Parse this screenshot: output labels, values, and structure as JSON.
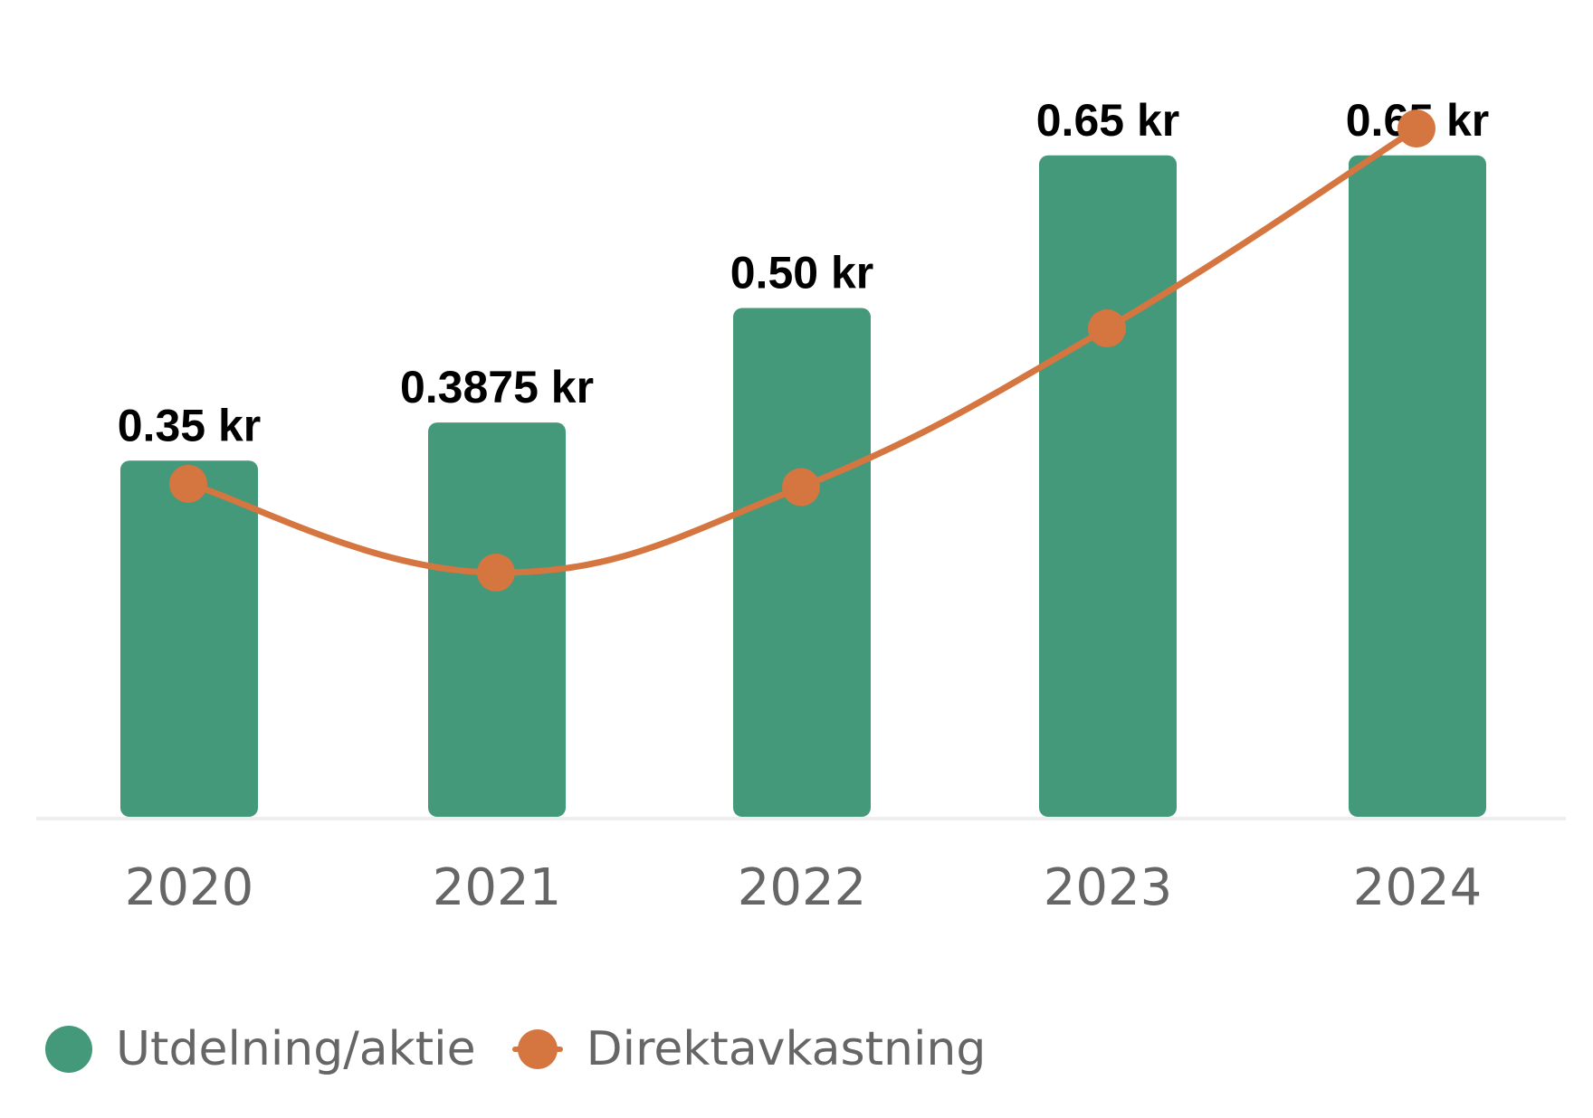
{
  "chart_data": {
    "type": "bar",
    "categories": [
      "2020",
      "2021",
      "2022",
      "2023",
      "2024"
    ],
    "series": [
      {
        "name": "Utdelning/aktie",
        "type": "bar",
        "values": [
          0.35,
          0.3875,
          0.5,
          0.65,
          0.65
        ],
        "labels": [
          "0.35 kr",
          "0.3875 kr",
          "0.50 kr",
          "0.65 kr",
          "0.65 kr"
        ],
        "color": "#43997a"
      },
      {
        "name": "Direktavkastning",
        "type": "line",
        "smooth": true,
        "values": [
          3.0,
          2.2,
          2.97,
          4.4,
          6.2
        ],
        "color": "#d57540"
      }
    ],
    "ylim": [
      0,
      0.72
    ],
    "y2lim": [
      0,
      6.6
    ],
    "legend": "bottom-left",
    "grid": false,
    "title": "",
    "xlabel": "",
    "ylabel": ""
  }
}
